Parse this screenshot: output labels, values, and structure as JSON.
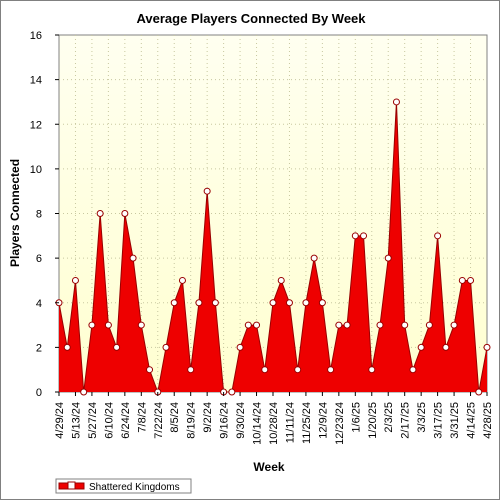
{
  "chart_data": {
    "type": "area",
    "title": "Average Players Connected By Week",
    "xlabel": "Week",
    "ylabel": "Players Connected",
    "ylim": [
      0,
      16
    ],
    "yticks": [
      "0",
      "2",
      "4",
      "6",
      "8",
      "10",
      "12",
      "14",
      "16"
    ],
    "grid": true,
    "legend_position": "bottom-left",
    "colors": {
      "area_fill": "#ee0000",
      "area_stroke": "#990000",
      "marker_fill": "#ffffff",
      "marker_stroke": "#990000",
      "plot_background_top": "#fffff0",
      "plot_background_bottom": "#ffffd0",
      "grid": "#c8c8a0"
    },
    "xticks": [
      "4/29/24",
      "5/13/24",
      "5/27/24",
      "6/10/24",
      "6/24/24",
      "7/8/24",
      "7/22/24",
      "8/5/24",
      "8/19/24",
      "9/2/24",
      "9/16/24",
      "9/30/24",
      "10/14/24",
      "10/28/24",
      "11/11/24",
      "11/25/24",
      "12/9/24",
      "12/23/24",
      "1/6/25",
      "1/20/25",
      "2/3/25",
      "2/17/25",
      "3/3/25",
      "3/17/25",
      "3/31/25",
      "4/14/25",
      "4/28/25"
    ],
    "x": [
      "4/29/24",
      "5/6/24",
      "5/13/24",
      "5/20/24",
      "5/27/24",
      "6/3/24",
      "6/10/24",
      "6/17/24",
      "6/24/24",
      "7/1/24",
      "7/8/24",
      "7/15/24",
      "7/22/24",
      "7/29/24",
      "8/5/24",
      "8/12/24",
      "8/19/24",
      "8/26/24",
      "9/2/24",
      "9/9/24",
      "9/16/24",
      "9/23/24",
      "9/30/24",
      "10/7/24",
      "10/14/24",
      "10/21/24",
      "10/28/24",
      "11/4/24",
      "11/11/24",
      "11/18/24",
      "11/25/24",
      "12/2/24",
      "12/9/24",
      "12/16/24",
      "12/23/24",
      "12/30/24",
      "1/6/25",
      "1/13/25",
      "1/20/25",
      "1/27/25",
      "2/3/25",
      "2/10/25",
      "2/17/25",
      "2/24/25",
      "3/3/25",
      "3/10/25",
      "3/17/25",
      "3/24/25",
      "3/31/25",
      "4/7/25",
      "4/14/25",
      "4/21/25",
      "4/28/25"
    ],
    "series": [
      {
        "name": "Shattered Kingdoms",
        "values": [
          4,
          2,
          5,
          0,
          3,
          8,
          3,
          2,
          8,
          6,
          3,
          1,
          0,
          2,
          4,
          5,
          1,
          4,
          9,
          4,
          0,
          0,
          2,
          3,
          3,
          1,
          4,
          5,
          4,
          1,
          4,
          6,
          4,
          1,
          3,
          3,
          7,
          7,
          1,
          3,
          6,
          13,
          3,
          1,
          2,
          3,
          7,
          2,
          3,
          5,
          5,
          0,
          2
        ]
      }
    ]
  }
}
